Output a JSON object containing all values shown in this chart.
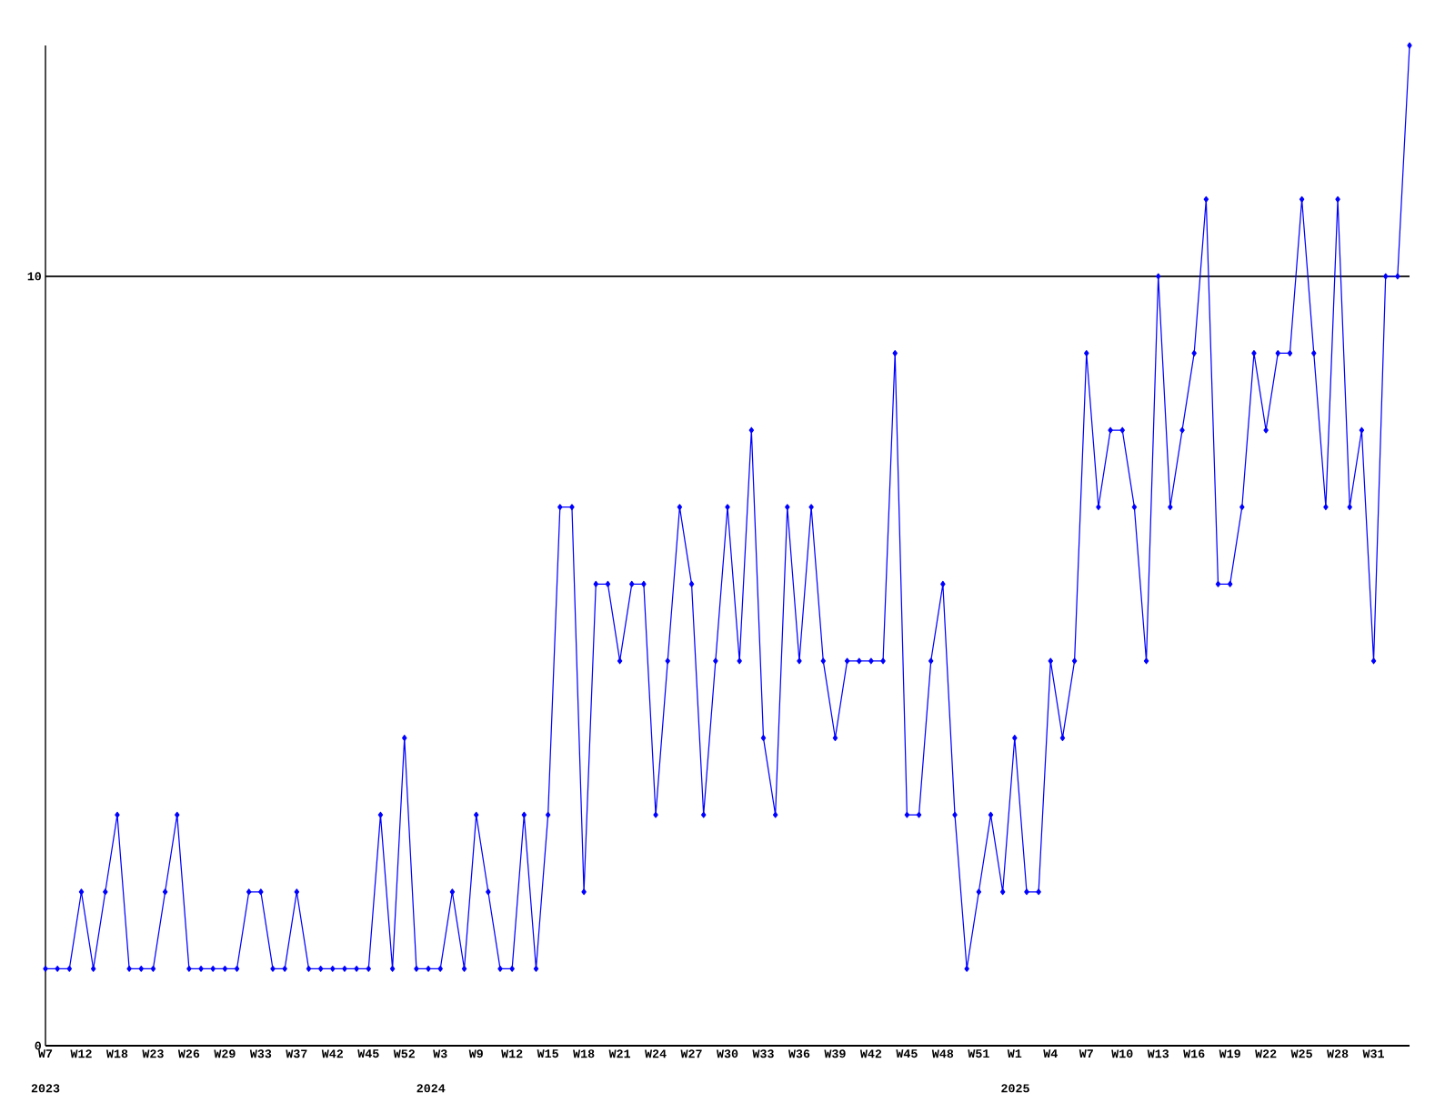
{
  "chart_data": {
    "type": "line",
    "categories": [
      "W7",
      null,
      null,
      "W12",
      null,
      null,
      "W18",
      null,
      null,
      "W23",
      null,
      null,
      "W26",
      null,
      null,
      "W29",
      null,
      null,
      "W33",
      null,
      null,
      "W37",
      null,
      null,
      "W42",
      null,
      null,
      "W45",
      null,
      null,
      "W52",
      null,
      null,
      "W3",
      null,
      null,
      "W9",
      null,
      null,
      "W12",
      null,
      null,
      "W15",
      null,
      null,
      "W18",
      null,
      null,
      "W21",
      null,
      null,
      "W24",
      null,
      null,
      "W27",
      null,
      null,
      "W30",
      null,
      null,
      "W33",
      null,
      null,
      "W36",
      null,
      null,
      "W39",
      null,
      null,
      "W42",
      null,
      null,
      "W45",
      null,
      null,
      "W48",
      null,
      null,
      "W51",
      null,
      null,
      "W1",
      null,
      null,
      "W4",
      null,
      null,
      "W7",
      null,
      null,
      "W10",
      null,
      null,
      "W13",
      null,
      null,
      "W16",
      null,
      null,
      "W19",
      null,
      null,
      "W22",
      null,
      null,
      "W25",
      null,
      null,
      "W28",
      null,
      null,
      "W31",
      null,
      null,
      null
    ],
    "series": [
      {
        "color": "#0000ff",
        "values": [
          1,
          1,
          1,
          2,
          1,
          2,
          3,
          1,
          1,
          1,
          2,
          3,
          1,
          1,
          1,
          1,
          1,
          2,
          2,
          1,
          1,
          2,
          1,
          1,
          1,
          1,
          1,
          1,
          3,
          1,
          4,
          1,
          1,
          1,
          2,
          1,
          3,
          2,
          1,
          1,
          3,
          1,
          3,
          7,
          7,
          2,
          6,
          6,
          5,
          6,
          6,
          3,
          5,
          7,
          6,
          3,
          5,
          7,
          5,
          8,
          4,
          3,
          7,
          5,
          7,
          5,
          4,
          5,
          5,
          5,
          5,
          9,
          3,
          3,
          5,
          6,
          3,
          1,
          2,
          3,
          2,
          4,
          2,
          2,
          5,
          4,
          5,
          9,
          7,
          8,
          8,
          7,
          5,
          10,
          7,
          8,
          9,
          11,
          6,
          6,
          7,
          9,
          8,
          9,
          9,
          11,
          9,
          7,
          11,
          7,
          8,
          5,
          10,
          10,
          13
        ]
      }
    ],
    "ylim": [
      0,
      13
    ],
    "yticks": [
      0,
      10
    ],
    "grid": "y",
    "marker": "diamond",
    "line_style": "solid",
    "annotations": [
      "2023",
      "2024",
      "2025"
    ]
  }
}
